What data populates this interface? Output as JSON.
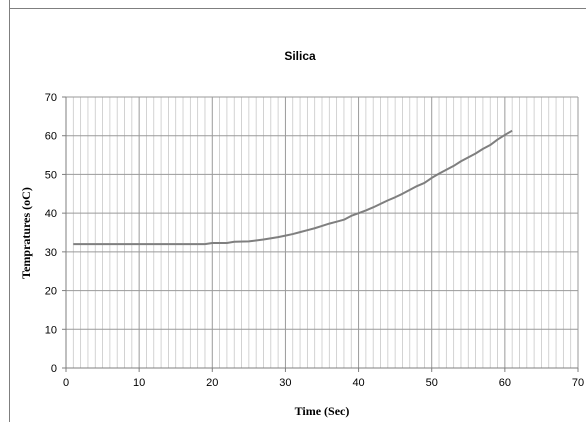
{
  "chart_data": {
    "type": "line",
    "title": "Silica",
    "xlabel": "Time (Sec)",
    "ylabel": "Tempratures (oC)",
    "xlim": [
      0,
      70
    ],
    "ylim": [
      0,
      70
    ],
    "xticks": [
      0,
      10,
      20,
      30,
      40,
      50,
      60,
      70
    ],
    "yticks": [
      0,
      10,
      20,
      30,
      40,
      50,
      60,
      70
    ],
    "x_minor_step": 1,
    "grid": true,
    "legend": "none",
    "series": [
      {
        "color": "#7f7f7f",
        "points": [
          [
            1,
            32
          ],
          [
            5,
            32
          ],
          [
            10,
            32
          ],
          [
            15,
            32
          ],
          [
            19,
            32
          ],
          [
            20,
            32.3
          ],
          [
            22,
            32.3
          ],
          [
            23,
            32.6
          ],
          [
            25,
            32.7
          ],
          [
            27,
            33.2
          ],
          [
            29,
            33.8
          ],
          [
            30,
            34.2
          ],
          [
            31,
            34.6
          ],
          [
            32,
            35.1
          ],
          [
            33,
            35.6
          ],
          [
            34,
            36.1
          ],
          [
            35,
            36.7
          ],
          [
            36,
            37.3
          ],
          [
            37,
            37.8
          ],
          [
            38,
            38.3
          ],
          [
            39,
            39.3
          ],
          [
            40,
            40.0
          ],
          [
            41,
            40.7
          ],
          [
            42,
            41.5
          ],
          [
            43,
            42.4
          ],
          [
            44,
            43.3
          ],
          [
            45,
            44.1
          ],
          [
            46,
            45.0
          ],
          [
            47,
            46.0
          ],
          [
            48,
            47.0
          ],
          [
            49,
            47.8
          ],
          [
            50,
            49.1
          ],
          [
            51,
            50.2
          ],
          [
            52,
            51.2
          ],
          [
            53,
            52.2
          ],
          [
            54,
            53.4
          ],
          [
            55,
            54.4
          ],
          [
            56,
            55.4
          ],
          [
            57,
            56.6
          ],
          [
            58,
            57.6
          ],
          [
            59,
            59.0
          ],
          [
            60,
            60.2
          ],
          [
            61,
            61.3
          ]
        ]
      }
    ]
  }
}
